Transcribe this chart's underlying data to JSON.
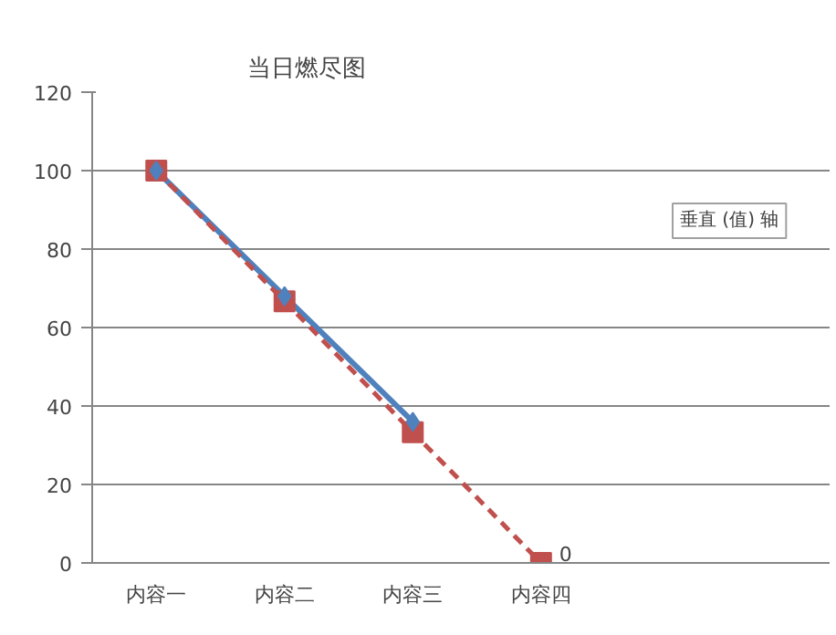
{
  "chart_data": {
    "type": "line",
    "title": "当日燃尽图",
    "categories": [
      "内容一",
      "内容二",
      "内容三",
      "内容四",
      null,
      null
    ],
    "series": [
      {
        "color": "#4f81bd",
        "values": [
          100,
          68,
          36,
          null,
          null,
          null
        ],
        "marker": "diamond",
        "line_style": "solid"
      },
      {
        "color": "#c0504d",
        "values": [
          100,
          66.7,
          33.3,
          0,
          null,
          null
        ],
        "marker": "square",
        "line_style": "dashed",
        "value_labels": [
          null,
          null,
          null,
          "0",
          null,
          null
        ]
      }
    ],
    "ylim": [
      0,
      120
    ],
    "yticks": [
      0,
      20,
      40,
      60,
      80,
      100,
      120
    ],
    "grid": "y",
    "annotations": [
      "垂直 (值) 轴"
    ]
  }
}
